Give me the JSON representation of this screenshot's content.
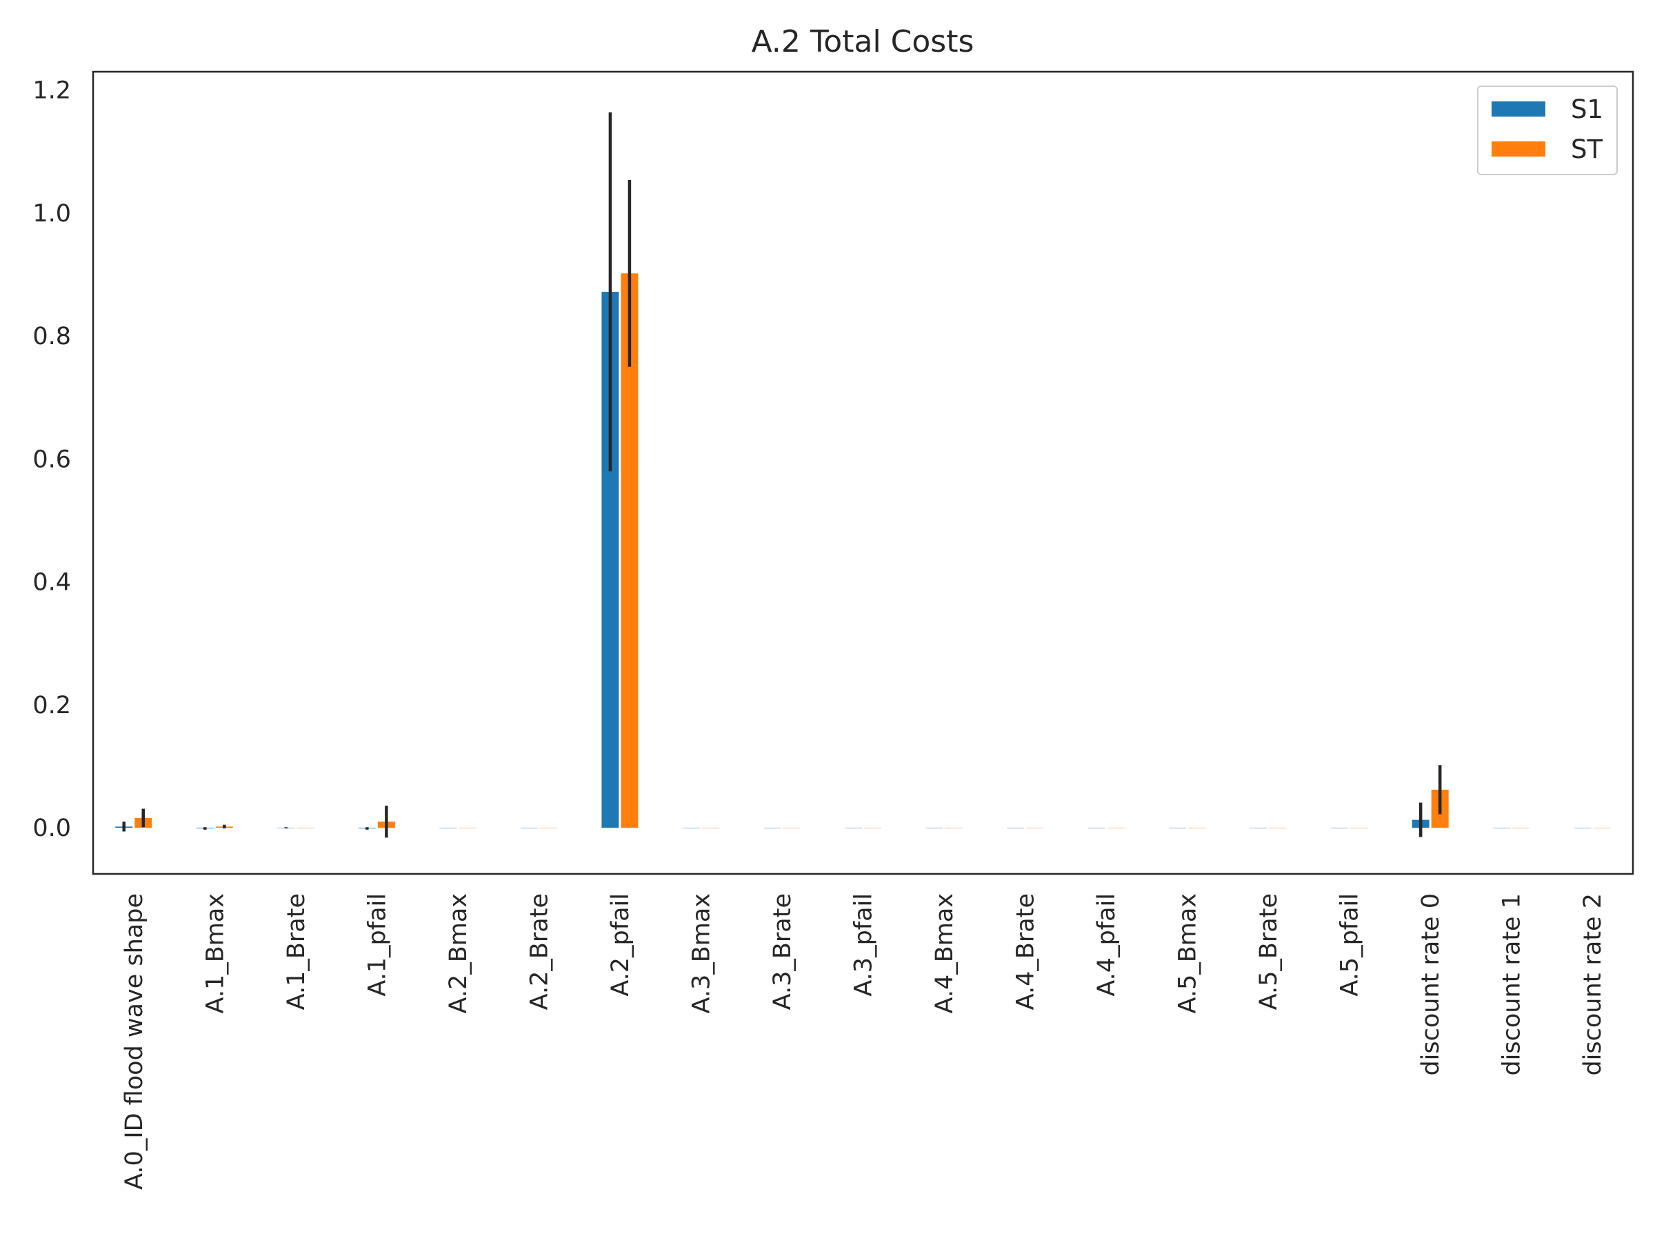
{
  "chart_data": {
    "type": "bar",
    "title": "A.2 Total Costs",
    "xlabel": "",
    "ylabel": "",
    "ylim": [
      -0.075,
      1.23
    ],
    "yticks": [
      "0.0",
      "0.2",
      "0.4",
      "0.6",
      "0.8",
      "1.0",
      "1.2"
    ],
    "grid": false,
    "legend_position": "top-right",
    "categories": [
      "A.0_ID flood wave shape",
      "A.1_Bmax",
      "A.1_Brate",
      "A.1_pfail",
      "A.2_Bmax",
      "A.2_Brate",
      "A.2_pfail",
      "A.3_Bmax",
      "A.3_Brate",
      "A.3_pfail",
      "A.4_Bmax",
      "A.4_Brate",
      "A.4_pfail",
      "A.5_Bmax",
      "A.5_Brate",
      "A.5_pfail",
      "discount rate 0",
      "discount rate 1",
      "discount rate 2"
    ],
    "series": [
      {
        "name": "S1",
        "color": "#1f77b4",
        "values": [
          0.002,
          -0.001,
          0.0,
          -0.001,
          0.0,
          0.0,
          0.872,
          0.0,
          0.0,
          0.0,
          0.0,
          0.0,
          0.0,
          0.0,
          0.0,
          0.0,
          0.013,
          0.0,
          0.0
        ],
        "errors": [
          0.008,
          0.002,
          0.001,
          0.002,
          0.0,
          0.0,
          0.292,
          0.0,
          0.0,
          0.0,
          0.0,
          0.0,
          0.0,
          0.0,
          0.0,
          0.0,
          0.028,
          0.0,
          0.0
        ]
      },
      {
        "name": "ST",
        "color": "#ff7f0e",
        "values": [
          0.016,
          0.002,
          0.0,
          0.01,
          0.0,
          0.0,
          0.902,
          0.0,
          0.0,
          0.0,
          0.0,
          0.0,
          0.0,
          0.0,
          0.0,
          0.0,
          0.062,
          0.0,
          0.0
        ],
        "errors": [
          0.015,
          0.003,
          0.0,
          0.026,
          0.0,
          0.0,
          0.152,
          0.0,
          0.0,
          0.0,
          0.0,
          0.0,
          0.0,
          0.0,
          0.0,
          0.0,
          0.04,
          0.0,
          0.0
        ]
      }
    ]
  }
}
